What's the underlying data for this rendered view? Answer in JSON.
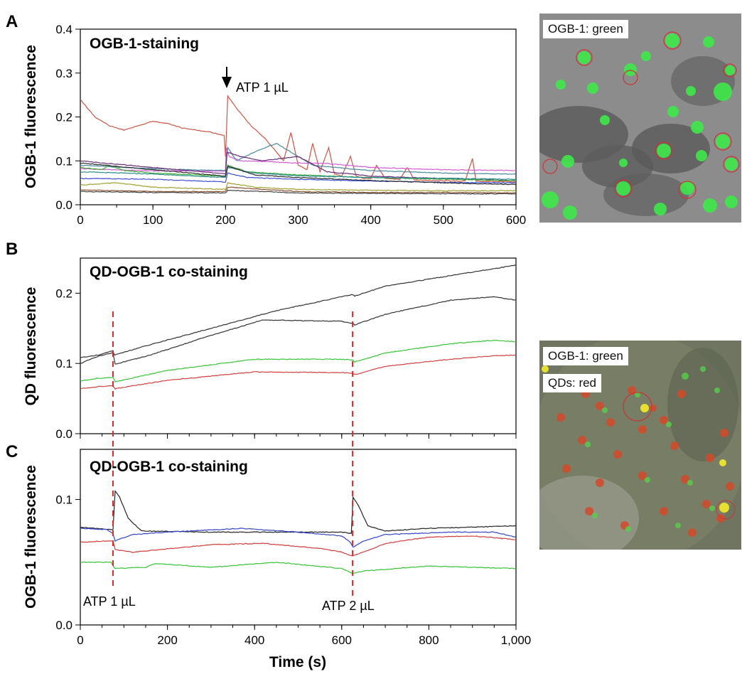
{
  "panels": {
    "A": "A",
    "B": "B",
    "C": "C"
  },
  "chart_data": [
    {
      "id": "A",
      "type": "line",
      "title": "OGB-1-staining",
      "ylabel": "OGB-1 fluorescence",
      "xlabel": "",
      "xlim": [
        0,
        600
      ],
      "ylim": [
        0,
        0.4
      ],
      "xticks": [
        "0",
        "100",
        "200",
        "300",
        "400",
        "500",
        "600"
      ],
      "yticks": [
        "0.0",
        "0.1",
        "0.2",
        "0.3",
        "0.4"
      ],
      "annotation": "ATP 1 µL",
      "annotation_x": 200,
      "series": [
        {
          "color": "#cd5544",
          "x": [
            0,
            5,
            20,
            40,
            60,
            80,
            100,
            120,
            140,
            160,
            180,
            198,
            200,
            203,
            215,
            235,
            255,
            270,
            280,
            290,
            300,
            312,
            320,
            330,
            342,
            350,
            360,
            372,
            380,
            390,
            400,
            408,
            420,
            440,
            450,
            460,
            470,
            480,
            500,
            520,
            530,
            540,
            545,
            560,
            580,
            600
          ],
          "y": [
            0.24,
            0.23,
            0.2,
            0.18,
            0.17,
            0.18,
            0.19,
            0.185,
            0.175,
            0.17,
            0.165,
            0.158,
            0.11,
            0.248,
            0.22,
            0.18,
            0.15,
            0.12,
            0.1,
            0.165,
            0.09,
            0.08,
            0.14,
            0.075,
            0.13,
            0.07,
            0.065,
            0.11,
            0.065,
            0.06,
            0.06,
            0.09,
            0.06,
            0.058,
            0.085,
            0.057,
            0.056,
            0.055,
            0.055,
            0.054,
            0.054,
            0.105,
            0.054,
            0.053,
            0.053,
            0.052
          ]
        },
        {
          "color": "#d25ad2",
          "x": [
            0,
            100,
            200,
            201,
            205,
            220,
            260,
            300,
            340,
            400,
            500,
            600
          ],
          "y": [
            0.082,
            0.077,
            0.077,
            0.13,
            0.11,
            0.1,
            0.098,
            0.095,
            0.094,
            0.085,
            0.08,
            0.078
          ]
        },
        {
          "color": "#4b8aa0",
          "x": [
            0,
            100,
            200,
            203,
            215,
            240,
            270,
            290,
            320,
            350,
            400,
            500,
            600
          ],
          "y": [
            0.09,
            0.082,
            0.078,
            0.13,
            0.1,
            0.12,
            0.14,
            0.12,
            0.09,
            0.085,
            0.078,
            0.072,
            0.07
          ]
        },
        {
          "color": "#6a2e7a",
          "x": [
            0,
            100,
            200,
            202,
            220,
            250,
            300,
            340,
            360,
            400,
            500,
            600
          ],
          "y": [
            0.1,
            0.085,
            0.07,
            0.12,
            0.11,
            0.1,
            0.11,
            0.075,
            0.072,
            0.065,
            0.06,
            0.055
          ]
        },
        {
          "color": "#3fae3a",
          "x": [
            0,
            30,
            40,
            60,
            100,
            200,
            203,
            230,
            300,
            400,
            500,
            600
          ],
          "y": [
            0.085,
            0.08,
            0.09,
            0.078,
            0.072,
            0.065,
            0.09,
            0.075,
            0.068,
            0.062,
            0.058,
            0.055
          ]
        },
        {
          "color": "#2a8c8c",
          "x": [
            0,
            100,
            200,
            203,
            240,
            300,
            400,
            500,
            600
          ],
          "y": [
            0.075,
            0.07,
            0.062,
            0.085,
            0.072,
            0.066,
            0.062,
            0.06,
            0.058
          ]
        },
        {
          "color": "#3c4fd6",
          "x": [
            0,
            100,
            200,
            203,
            230,
            300,
            400,
            500,
            600
          ],
          "y": [
            0.06,
            0.058,
            0.052,
            0.072,
            0.062,
            0.058,
            0.054,
            0.051,
            0.05
          ]
        },
        {
          "color": "#2d2d2d",
          "x": [
            0,
            100,
            200,
            203,
            240,
            300,
            400,
            500,
            600
          ],
          "y": [
            0.095,
            0.08,
            0.065,
            0.088,
            0.068,
            0.062,
            0.055,
            0.05,
            0.046
          ]
        },
        {
          "color": "#a0a030",
          "x": [
            0,
            50,
            100,
            200,
            203,
            240,
            300,
            400,
            500,
            600
          ],
          "y": [
            0.045,
            0.05,
            0.04,
            0.035,
            0.05,
            0.04,
            0.035,
            0.033,
            0.032,
            0.032
          ]
        },
        {
          "color": "#8a5030",
          "x": [
            0,
            100,
            200,
            203,
            300,
            400,
            500,
            600
          ],
          "y": [
            0.034,
            0.03,
            0.03,
            0.04,
            0.03,
            0.028,
            0.028,
            0.027
          ]
        },
        {
          "color": "#444444",
          "x": [
            0,
            100,
            200,
            203,
            300,
            400,
            500,
            600
          ],
          "y": [
            0.03,
            0.028,
            0.027,
            0.033,
            0.027,
            0.026,
            0.025,
            0.025
          ]
        }
      ]
    },
    {
      "id": "B",
      "type": "line",
      "title": "QD-OGB-1 co-staining",
      "ylabel": "QD fluorescence",
      "xlabel": "",
      "xlim": [
        0,
        1000
      ],
      "ylim": [
        0,
        0.25
      ],
      "yticks": [
        "0.0",
        "0.1",
        "0.2"
      ],
      "events": [
        75,
        625
      ],
      "series": [
        {
          "color": "#333333",
          "x": [
            0,
            40,
            75,
            78,
            150,
            300,
            450,
            600,
            625,
            630,
            700,
            850,
            1000
          ],
          "y": [
            0.108,
            0.112,
            0.118,
            0.112,
            0.125,
            0.15,
            0.175,
            0.195,
            0.198,
            0.196,
            0.21,
            0.225,
            0.24
          ]
        },
        {
          "color": "#333333",
          "x": [
            0,
            40,
            75,
            80,
            150,
            300,
            420,
            500,
            600,
            625,
            630,
            700,
            850,
            950,
            1000
          ],
          "y": [
            0.1,
            0.11,
            0.115,
            0.099,
            0.11,
            0.14,
            0.162,
            0.161,
            0.16,
            0.157,
            0.155,
            0.17,
            0.19,
            0.195,
            0.19
          ]
        },
        {
          "color": "#35c435",
          "x": [
            0,
            40,
            75,
            80,
            200,
            400,
            600,
            625,
            630,
            700,
            850,
            950,
            1000
          ],
          "y": [
            0.075,
            0.079,
            0.08,
            0.074,
            0.09,
            0.106,
            0.106,
            0.105,
            0.102,
            0.115,
            0.128,
            0.133,
            0.131
          ]
        },
        {
          "color": "#d44040",
          "x": [
            0,
            40,
            75,
            80,
            200,
            400,
            600,
            625,
            630,
            700,
            850,
            950,
            1000
          ],
          "y": [
            0.064,
            0.067,
            0.068,
            0.064,
            0.076,
            0.088,
            0.087,
            0.086,
            0.084,
            0.096,
            0.106,
            0.111,
            0.112
          ]
        }
      ]
    },
    {
      "id": "C",
      "type": "line",
      "title": "QD-OGB-1 co-staining",
      "ylabel": "OGB-1 fluorescence",
      "xlabel": "Time (s)",
      "xlim": [
        0,
        1000
      ],
      "ylim": [
        0,
        0.14
      ],
      "xticks": [
        "0",
        "200",
        "400",
        "600",
        "800",
        "1,000"
      ],
      "yticks": [
        "0.0",
        "0.1"
      ],
      "events": [
        75,
        625
      ],
      "event_labels": [
        "ATP 1 µL",
        "ATP 2 µL"
      ],
      "series": [
        {
          "color": "#222222",
          "x": [
            0,
            75,
            80,
            90,
            110,
            140,
            300,
            600,
            622,
            626,
            640,
            660,
            700,
            800,
            1000
          ],
          "y": [
            0.078,
            0.076,
            0.107,
            0.102,
            0.085,
            0.075,
            0.074,
            0.074,
            0.073,
            0.102,
            0.094,
            0.079,
            0.075,
            0.077,
            0.079
          ]
        },
        {
          "color": "#3344cc",
          "x": [
            0,
            60,
            75,
            80,
            95,
            120,
            200,
            370,
            500,
            600,
            620,
            626,
            650,
            700,
            850,
            950,
            1000
          ],
          "y": [
            0.077,
            0.076,
            0.073,
            0.067,
            0.069,
            0.072,
            0.074,
            0.077,
            0.074,
            0.071,
            0.066,
            0.062,
            0.067,
            0.072,
            0.074,
            0.074,
            0.07
          ]
        },
        {
          "color": "#d23a3a",
          "x": [
            0,
            60,
            75,
            80,
            120,
            300,
            420,
            550,
            600,
            625,
            650,
            700,
            800,
            900,
            1000
          ],
          "y": [
            0.066,
            0.067,
            0.067,
            0.06,
            0.058,
            0.064,
            0.065,
            0.061,
            0.058,
            0.055,
            0.058,
            0.065,
            0.07,
            0.071,
            0.068
          ]
        },
        {
          "color": "#35c435",
          "x": [
            0,
            70,
            80,
            150,
            170,
            300,
            450,
            600,
            625,
            650,
            800,
            1000
          ],
          "y": [
            0.05,
            0.05,
            0.045,
            0.046,
            0.049,
            0.046,
            0.05,
            0.045,
            0.041,
            0.043,
            0.047,
            0.045
          ]
        }
      ]
    }
  ],
  "micrographs": [
    {
      "labels": [
        "OGB-1: green"
      ]
    },
    {
      "labels": [
        "OGB-1: green",
        "QDs: red"
      ]
    }
  ],
  "colors": {
    "event_line": "#d42a2a",
    "axis": "#000000"
  }
}
